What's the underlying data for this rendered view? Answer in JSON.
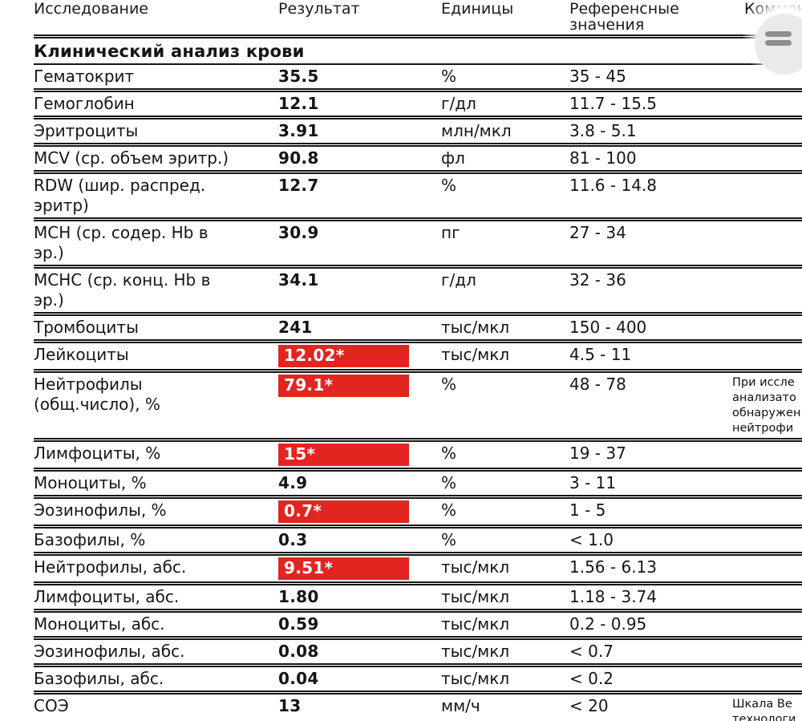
{
  "page": {
    "background": "#ffffff",
    "text_color": "#151515",
    "flag_color": "#e32521",
    "flag_text_color": "#ffffff"
  },
  "header": {
    "col_test": "Исследование",
    "col_result": "Результат",
    "col_units": "Единицы",
    "col_ref": "Референсные значения",
    "col_comment": "Комментарии"
  },
  "section": {
    "title": "Клинический анализ крови"
  },
  "icons": {
    "drag_handle": "two-horizontal-bars"
  },
  "rows": [
    {
      "name": "Гематокрит",
      "result": "35.5",
      "flagged": false,
      "units": "%",
      "reference": "35 - 45",
      "comment": ""
    },
    {
      "name": "Гемоглобин",
      "result": "12.1",
      "flagged": false,
      "units": "г/дл",
      "reference": "11.7 - 15.5",
      "comment": ""
    },
    {
      "name": "Эритроциты",
      "result": "3.91",
      "flagged": false,
      "units": "млн/мкл",
      "reference": "3.8 - 5.1",
      "comment": ""
    },
    {
      "name": "MCV (ср. объем эритр.)",
      "result": "90.8",
      "flagged": false,
      "units": "фл",
      "reference": "81 - 100",
      "comment": ""
    },
    {
      "name": "RDW (шир. распред.\nэритр)",
      "result": "12.7",
      "flagged": false,
      "units": "%",
      "reference": "11.6 - 14.8",
      "comment": ""
    },
    {
      "name": "MCH (ср. содер. Hb в\nэр.)",
      "result": "30.9",
      "flagged": false,
      "units": "пг",
      "reference": "27 - 34",
      "comment": ""
    },
    {
      "name": "MCHC (ср. конц. Hb в\nэр.)",
      "result": "34.1",
      "flagged": false,
      "units": "г/дл",
      "reference": "32 - 36",
      "comment": ""
    },
    {
      "name": "Тромбоциты",
      "result": "241",
      "flagged": false,
      "units": "тыс/мкл",
      "reference": "150 - 400",
      "comment": ""
    },
    {
      "name": "Лейкоциты",
      "result": "12.02*",
      "flagged": true,
      "units": "тыс/мкл",
      "reference": "4.5 - 11",
      "comment": ""
    },
    {
      "name": "Нейтрофилы\n(общ.число), %",
      "result": "79.1*",
      "flagged": true,
      "units": "%",
      "reference": "48 - 78",
      "comment": "При иссле\nанализато\nобнаружен\nнейтрофи"
    },
    {
      "name": "Лимфоциты, %",
      "result": "15*",
      "flagged": true,
      "units": "%",
      "reference": "19 - 37",
      "comment": ""
    },
    {
      "name": "Моноциты, %",
      "result": "4.9",
      "flagged": false,
      "units": "%",
      "reference": "3 - 11",
      "comment": ""
    },
    {
      "name": "Эозинофилы, %",
      "result": "0.7*",
      "flagged": true,
      "units": "%",
      "reference": "1 - 5",
      "comment": ""
    },
    {
      "name": "Базофилы, %",
      "result": "0.3",
      "flagged": false,
      "units": "%",
      "reference": "< 1.0",
      "comment": ""
    },
    {
      "name": "Нейтрофилы, абс.",
      "result": "9.51*",
      "flagged": true,
      "units": "тыс/мкл",
      "reference": "1.56 - 6.13",
      "comment": ""
    },
    {
      "name": "Лимфоциты, абс.",
      "result": "1.80",
      "flagged": false,
      "units": "тыс/мкл",
      "reference": "1.18 - 3.74",
      "comment": ""
    },
    {
      "name": "Моноциты, абс.",
      "result": "0.59",
      "flagged": false,
      "units": "тыс/мкл",
      "reference": "0.2 - 0.95",
      "comment": ""
    },
    {
      "name": "Эозинофилы, абс.",
      "result": "0.08",
      "flagged": false,
      "units": "тыс/мкл",
      "reference": "< 0.7",
      "comment": ""
    },
    {
      "name": "Базофилы, абс.",
      "result": "0.04",
      "flagged": false,
      "units": "тыс/мкл",
      "reference": "< 0.2",
      "comment": ""
    },
    {
      "name": "СОЭ",
      "result": "13",
      "flagged": false,
      "units": "мм/ч",
      "reference": "< 20",
      "comment": "Шкала Ве\nтехнологи"
    }
  ]
}
